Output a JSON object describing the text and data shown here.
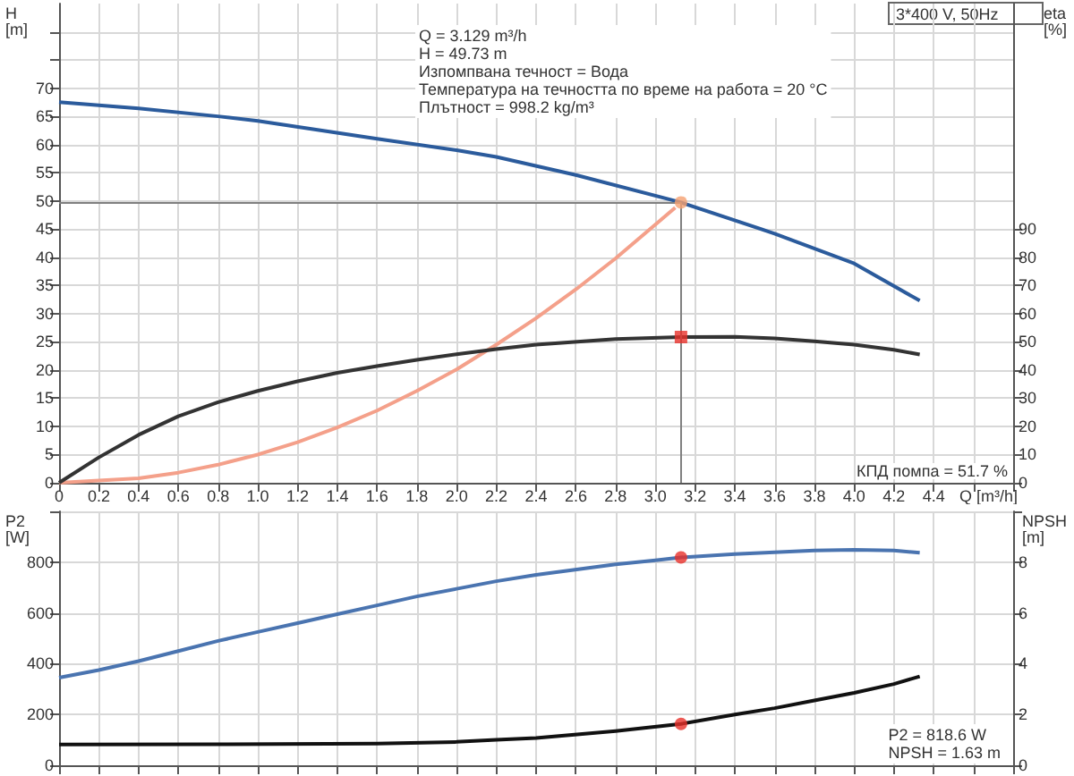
{
  "chart_data": [
    {
      "type": "line",
      "title": "3*400 V, 50Hz",
      "xlabel": "Q [m³/h]",
      "ylabel": "H [m]",
      "y2label": "eta [%]",
      "annotations": [
        "Q = 3.129 m³/h",
        "H = 49.73 m",
        "Изпомпвана течност = Вода",
        "Температура на течността по време на работа = 20 °C",
        "Плътност = 998.2 kg/m³",
        "КПД помпа = 51.7 %"
      ],
      "xlim": [
        0,
        4.8
      ],
      "xticks": [
        0,
        0.2,
        0.4,
        0.6,
        0.8,
        {
          "value": 1,
          "label": "1.0"
        },
        1.2,
        1.4,
        1.6,
        1.8,
        {
          "value": 2,
          "label": "2.0"
        },
        2.2,
        2.4,
        2.6,
        2.8,
        {
          "value": 3,
          "label": "3.0"
        },
        3.2,
        3.4,
        3.6,
        3.8,
        {
          "value": 4,
          "label": "4.0"
        },
        4.2,
        4.4,
        {
          "value": 4.6,
          "label": null
        },
        {
          "value": 4.8,
          "label": null
        }
      ],
      "ylim": [
        0,
        85
      ],
      "yticks": [
        0,
        5,
        10,
        15,
        20,
        25,
        30,
        35,
        40,
        45,
        50,
        55,
        60,
        65,
        70,
        {
          "value": 75,
          "label": null
        },
        {
          "value": 80,
          "label": null
        }
      ],
      "y2lim": [
        0,
        170
      ],
      "y2ticks": [
        0,
        10,
        20,
        30,
        40,
        50,
        60,
        70,
        80,
        90
      ],
      "grid": true,
      "ref_lines": [
        {
          "axis": "y",
          "value": 49.73,
          "color": "#808080"
        },
        {
          "axis": "x",
          "value": 3.129,
          "color": "#808080"
        }
      ],
      "series": [
        {
          "color": "#2b5b9c",
          "x": [
            0,
            0.4,
            0.8,
            1.0,
            1.6,
            2.0,
            2.2,
            2.6,
            3.129,
            3.6,
            4.0,
            4.33
          ],
          "values": [
            67.5,
            66.4,
            65,
            64.2,
            61,
            59,
            57.8,
            54.6,
            49.73,
            44.2,
            38.9,
            32.3
          ]
        },
        {
          "color": "#f4a08a",
          "x": [
            0,
            0.4,
            0.6,
            0.8,
            1.0,
            1.2,
            1.4,
            1.6,
            1.8,
            2.0,
            2.2,
            2.4,
            2.6,
            2.8,
            3.1
          ],
          "values": [
            0,
            0.8,
            1.8,
            3.2,
            5,
            7.2,
            9.8,
            12.8,
            16.3,
            20.1,
            24.5,
            29.2,
            34.3,
            39.8,
            48.8
          ]
        },
        {
          "color": "#333333",
          "axis": "y2",
          "x": [
            0,
            0.2,
            0.4,
            0.6,
            0.8,
            1.0,
            1.2,
            1.4,
            1.6,
            1.8,
            2.0,
            2.2,
            2.4,
            2.8,
            3.129,
            3.4,
            3.6,
            3.8,
            4.0,
            4.2,
            4.33
          ],
          "values": [
            0,
            9,
            17,
            23.6,
            28.6,
            32.6,
            36,
            39,
            41.4,
            43.6,
            45.6,
            47.4,
            49,
            51,
            51.7,
            51.8,
            51.2,
            50.2,
            49,
            47.2,
            45.5
          ]
        },
        {
          "type": "scatter",
          "color": "#f5a070",
          "marker": "circle",
          "x": [
            3.129
          ],
          "values": [
            49.73
          ]
        },
        {
          "type": "scatter",
          "color": "#e8312a",
          "marker": "square",
          "axis": "y2",
          "x": [
            3.129
          ],
          "values": [
            51.7
          ]
        }
      ]
    },
    {
      "type": "line",
      "ylabel": "P2 [W]",
      "y2label": "NPSH [m]",
      "annotations": [
        "P2 = 818.6 W",
        "NPSH = 1.63 m"
      ],
      "xlim": [
        0,
        4.8
      ],
      "xticks": [
        0,
        0.2,
        0.4,
        0.6,
        0.8,
        1,
        1.2,
        1.4,
        1.6,
        1.8,
        2,
        2.2,
        2.4,
        2.6,
        2.8,
        3,
        3.2,
        3.4,
        3.6,
        3.8,
        4,
        4.2,
        4.4,
        4.6,
        4.8
      ],
      "ylim": [
        0,
        1000
      ],
      "yticks": [
        0,
        200,
        400,
        600,
        800,
        {
          "value": 1000,
          "label": null
        }
      ],
      "y2lim": [
        0,
        10
      ],
      "y2ticks": [
        0,
        2,
        4,
        6,
        8,
        {
          "value": 10,
          "label": null
        }
      ],
      "tick_labels": "y",
      "grid": true,
      "series": [
        {
          "color": "#4a74b0",
          "x": [
            0,
            0.2,
            0.4,
            0.6,
            0.8,
            1.0,
            1.2,
            1.4,
            1.6,
            1.8,
            2.0,
            2.2,
            2.4,
            2.8,
            3.0,
            3.129,
            3.4,
            3.8,
            4.0,
            4.2,
            4.33
          ],
          "values": [
            345,
            375,
            410,
            450,
            490,
            525,
            560,
            595,
            630,
            665,
            695,
            725,
            750,
            791,
            807,
            818.6,
            832,
            846,
            849,
            846,
            837
          ]
        },
        {
          "color": "#111111",
          "axis": "y2",
          "x": [
            0,
            0.8,
            1.6,
            2.0,
            2.2,
            2.4,
            2.8,
            3.129,
            3.4,
            3.6,
            3.8,
            4.0,
            4.2,
            4.33
          ],
          "values": [
            0.82,
            0.83,
            0.85,
            0.92,
            1.0,
            1.07,
            1.35,
            1.63,
            2.0,
            2.25,
            2.55,
            2.85,
            3.2,
            3.5
          ]
        },
        {
          "type": "scatter",
          "color": "#e8312a",
          "marker": "circle",
          "x": [
            3.129
          ],
          "values": [
            818.6
          ]
        },
        {
          "type": "scatter",
          "color": "#e8312a",
          "marker": "circle",
          "axis": "y2",
          "x": [
            3.129
          ],
          "values": [
            1.63
          ]
        }
      ]
    }
  ]
}
